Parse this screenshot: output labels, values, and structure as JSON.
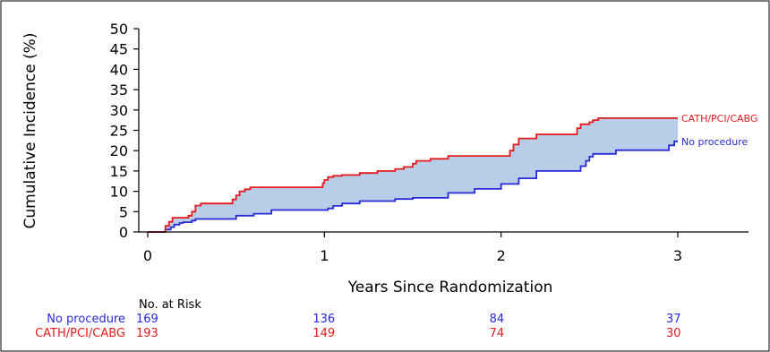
{
  "chart_data": {
    "type": "line",
    "xlabel": "Years Since Randomization",
    "ylabel": "Cumulative Incidence (%)",
    "xlim": [
      0,
      3.5
    ],
    "ylim": [
      0,
      50
    ],
    "x_ticks": [
      "0",
      "1",
      "2",
      "3"
    ],
    "y_ticks": [
      "0",
      "5",
      "10",
      "15",
      "20",
      "25",
      "30",
      "35",
      "40",
      "45",
      "50"
    ],
    "grid": false,
    "series": [
      {
        "name": "CATH/PCI/CABG",
        "color": "#e41a1c",
        "step": true,
        "x": [
          0,
          0.1,
          0.12,
          0.14,
          0.23,
          0.25,
          0.27,
          0.3,
          0.48,
          0.5,
          0.52,
          0.55,
          0.58,
          0.99,
          1.0,
          1.02,
          1.05,
          1.1,
          1.2,
          1.3,
          1.4,
          1.45,
          1.5,
          1.52,
          1.6,
          1.7,
          2.05,
          2.07,
          2.1,
          2.2,
          2.43,
          2.45,
          2.5,
          2.52,
          2.55,
          3.0
        ],
        "y": [
          0,
          1.5,
          2.5,
          3.5,
          4,
          5,
          6.5,
          7,
          8,
          9,
          10,
          10.5,
          11,
          12,
          12.8,
          13.5,
          13.8,
          14,
          14.5,
          15,
          15.5,
          16,
          16.8,
          17.5,
          18,
          18.7,
          20,
          21.5,
          23,
          24,
          25.5,
          26.5,
          27,
          27.5,
          28,
          28
        ]
      },
      {
        "name": "No procedure",
        "color": "#2929d8",
        "step": true,
        "x": [
          0,
          0.1,
          0.13,
          0.15,
          0.18,
          0.2,
          0.25,
          0.27,
          0.5,
          0.6,
          0.7,
          1.02,
          1.05,
          1.1,
          1.2,
          1.4,
          1.5,
          1.7,
          1.85,
          2.0,
          2.1,
          2.2,
          2.45,
          2.48,
          2.5,
          2.52,
          2.65,
          2.95,
          2.98,
          3.0
        ],
        "y": [
          0,
          0.6,
          1.2,
          1.8,
          2.2,
          2.4,
          2.8,
          3.2,
          4.0,
          4.5,
          5.4,
          5.8,
          6.4,
          7.0,
          7.6,
          8.1,
          8.4,
          9.6,
          10.6,
          11.8,
          13.2,
          15.0,
          16.2,
          17.5,
          18.5,
          19.2,
          20.1,
          21.3,
          22.3,
          22.3
        ]
      }
    ],
    "band": {
      "name": "difference",
      "color": "#b8cde8"
    },
    "risk_table": {
      "title": "No. at Risk",
      "times": [
        0,
        1,
        2,
        3
      ],
      "rows": [
        {
          "name": "No procedure",
          "color": "#2929d8",
          "values": [
            "169",
            "136",
            "84",
            "37"
          ]
        },
        {
          "name": "CATH/PCI/CABG",
          "color": "#e41a1c",
          "values": [
            "193",
            "149",
            "74",
            "30"
          ]
        }
      ]
    }
  }
}
